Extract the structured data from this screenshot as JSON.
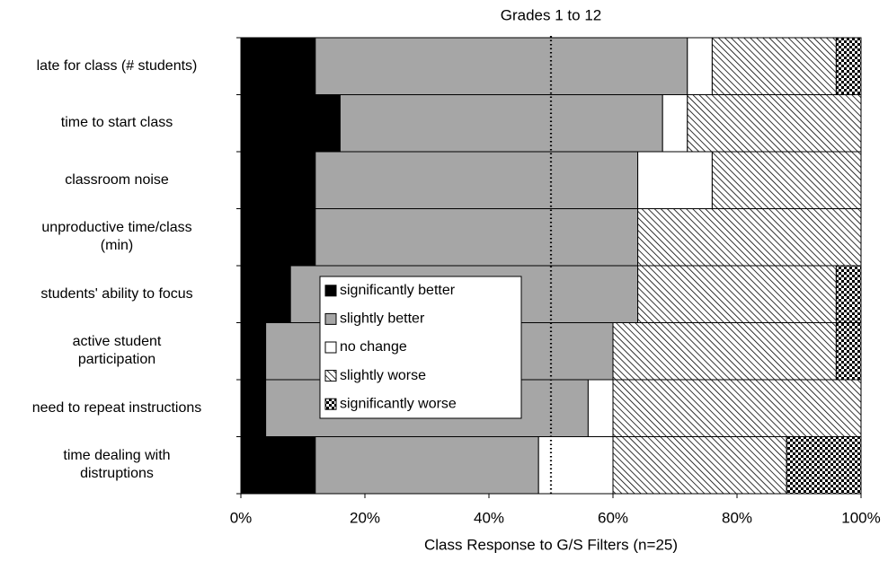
{
  "chart_data": {
    "type": "stacked_barh",
    "title": "Grades 1 to 12",
    "x_label": "Class Response to G/S Filters (n=25)",
    "categories": [
      "late for class (# students)",
      "time to start class",
      "classroom noise",
      "unproductive time/class\n(min)",
      "students' ability to focus",
      "active student\nparticipation",
      "need to repeat instructions",
      "time dealing with\ndistruptions"
    ],
    "series": [
      {
        "name": "significantly better",
        "color": "#000000",
        "values": [
          12,
          16,
          12,
          12,
          8,
          4,
          4,
          12
        ]
      },
      {
        "name": "slightly better",
        "color": "#a6a6a6",
        "values": [
          60,
          52,
          52,
          52,
          56,
          56,
          52,
          36
        ]
      },
      {
        "name": "no change",
        "color": "#ffffff",
        "values": [
          4,
          4,
          12,
          0,
          0,
          0,
          4,
          12
        ]
      },
      {
        "name": "slightly worse",
        "color": "#000000",
        "pattern": "hatch",
        "values": [
          20,
          28,
          24,
          36,
          32,
          36,
          40,
          28
        ]
      },
      {
        "name": "significantly worse",
        "color": "#000000",
        "pattern": "checker",
        "values": [
          4,
          0,
          0,
          0,
          4,
          4,
          0,
          12
        ]
      }
    ],
    "xlim": [
      0,
      100
    ],
    "xticks": [
      {
        "value": 0,
        "label": "0%"
      },
      {
        "value": 20,
        "label": "20%"
      },
      {
        "value": 40,
        "label": "40%"
      },
      {
        "value": 60,
        "label": "60%"
      },
      {
        "value": 80,
        "label": "80%"
      },
      {
        "value": 100,
        "label": "100%"
      }
    ],
    "reference_x": 50,
    "legend": "center"
  }
}
